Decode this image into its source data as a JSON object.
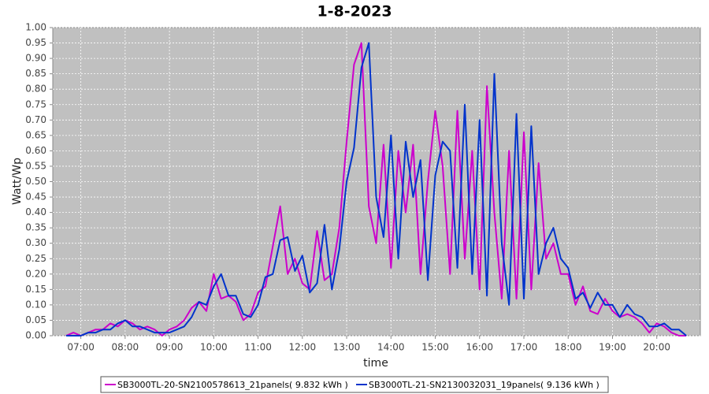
{
  "chart_data": {
    "type": "line",
    "title": "1-8-2023",
    "xlabel": "time",
    "ylabel": "Watt/Wp",
    "x": [
      "06:40",
      "06:50",
      "07:00",
      "07:10",
      "07:20",
      "07:30",
      "07:40",
      "07:50",
      "08:00",
      "08:10",
      "08:20",
      "08:30",
      "08:40",
      "08:50",
      "09:00",
      "09:10",
      "09:20",
      "09:30",
      "09:40",
      "09:50",
      "10:00",
      "10:10",
      "10:20",
      "10:30",
      "10:40",
      "10:50",
      "11:00",
      "11:10",
      "11:20",
      "11:30",
      "11:40",
      "11:50",
      "12:00",
      "12:10",
      "12:20",
      "12:30",
      "12:40",
      "12:50",
      "13:00",
      "13:10",
      "13:20",
      "13:30",
      "13:40",
      "13:50",
      "14:00",
      "14:10",
      "14:20",
      "14:30",
      "14:40",
      "14:50",
      "15:00",
      "15:10",
      "15:20",
      "15:30",
      "15:40",
      "15:50",
      "16:00",
      "16:10",
      "16:20",
      "16:30",
      "16:40",
      "16:50",
      "17:00",
      "17:10",
      "17:20",
      "17:30",
      "17:40",
      "17:50",
      "18:00",
      "18:10",
      "18:20",
      "18:30",
      "18:40",
      "18:50",
      "19:00",
      "19:10",
      "19:20",
      "19:30",
      "19:40",
      "19:50",
      "20:00",
      "20:10",
      "20:20",
      "20:30",
      "20:40"
    ],
    "series": [
      {
        "name": "SB3000TL-20-SN2100578613_21panels( 9.832 kWh )",
        "color": "#cc00cc",
        "values": [
          0,
          0.01,
          0,
          0.01,
          0.02,
          0.02,
          0.04,
          0.03,
          0.05,
          0.04,
          0.02,
          0.03,
          0.02,
          0,
          0.02,
          0.03,
          0.05,
          0.09,
          0.11,
          0.08,
          0.2,
          0.12,
          0.13,
          0.11,
          0.05,
          0.07,
          0.14,
          0.16,
          0.29,
          0.42,
          0.2,
          0.25,
          0.17,
          0.15,
          0.34,
          0.18,
          0.2,
          0.35,
          0.63,
          0.88,
          0.95,
          0.42,
          0.3,
          0.62,
          0.22,
          0.6,
          0.4,
          0.62,
          0.2,
          0.5,
          0.73,
          0.55,
          0.2,
          0.73,
          0.25,
          0.6,
          0.15,
          0.81,
          0.4,
          0.12,
          0.6,
          0.12,
          0.66,
          0.15,
          0.56,
          0.25,
          0.3,
          0.2,
          0.2,
          0.1,
          0.16,
          0.08,
          0.07,
          0.12,
          0.08,
          0.06,
          0.07,
          0.06,
          0.04,
          0.01,
          0.04,
          0.03,
          0.01,
          0,
          0
        ]
      },
      {
        "name": "SB3000TL-21-SN2130032031_19panels( 9.136 kWh )",
        "color": "#0033cc",
        "values": [
          0,
          0,
          0,
          0.01,
          0.01,
          0.02,
          0.02,
          0.04,
          0.05,
          0.03,
          0.03,
          0.02,
          0.01,
          0.01,
          0.01,
          0.02,
          0.03,
          0.06,
          0.11,
          0.1,
          0.16,
          0.2,
          0.13,
          0.13,
          0.07,
          0.06,
          0.1,
          0.19,
          0.2,
          0.31,
          0.32,
          0.21,
          0.26,
          0.14,
          0.17,
          0.36,
          0.15,
          0.28,
          0.5,
          0.61,
          0.87,
          0.95,
          0.45,
          0.32,
          0.65,
          0.25,
          0.63,
          0.45,
          0.57,
          0.18,
          0.52,
          0.63,
          0.6,
          0.22,
          0.75,
          0.2,
          0.7,
          0.13,
          0.85,
          0.3,
          0.1,
          0.72,
          0.12,
          0.68,
          0.2,
          0.3,
          0.35,
          0.25,
          0.22,
          0.12,
          0.14,
          0.09,
          0.14,
          0.1,
          0.1,
          0.06,
          0.1,
          0.07,
          0.06,
          0.03,
          0.03,
          0.04,
          0.02,
          0.02,
          0
        ]
      }
    ],
    "xlim": [
      "06:22",
      "20:59"
    ],
    "xticks": [
      "07:00",
      "08:00",
      "09:00",
      "10:00",
      "11:00",
      "12:00",
      "13:00",
      "14:00",
      "15:00",
      "16:00",
      "17:00",
      "18:00",
      "19:00",
      "20:00"
    ],
    "ylim": [
      0,
      1
    ],
    "yticks": [
      {
        "value": 0,
        "label": "0.00"
      },
      {
        "value": 0.05,
        "label": "0.05"
      },
      {
        "value": 0.1,
        "label": "0.10"
      },
      {
        "value": 0.15,
        "label": "0.15"
      },
      {
        "value": 0.2,
        "label": "0.20"
      },
      {
        "value": 0.25,
        "label": "0.25"
      },
      {
        "value": 0.3,
        "label": "0.30"
      },
      {
        "value": 0.35,
        "label": "0.35"
      },
      {
        "value": 0.4,
        "label": "0.40"
      },
      {
        "value": 0.45,
        "label": "0.45"
      },
      {
        "value": 0.5,
        "label": "0.50"
      },
      {
        "value": 0.55,
        "label": "0.55"
      },
      {
        "value": 0.6,
        "label": "0.60"
      },
      {
        "value": 0.65,
        "label": "0.65"
      },
      {
        "value": 0.7,
        "label": "0.70"
      },
      {
        "value": 0.75,
        "label": "0.75"
      },
      {
        "value": 0.8,
        "label": "0.80"
      },
      {
        "value": 0.85,
        "label": "0.85"
      },
      {
        "value": 0.9,
        "label": "0.90"
      },
      {
        "value": 0.95,
        "label": "0.95"
      },
      {
        "value": 1,
        "label": "1.00"
      }
    ],
    "grid": true,
    "legend": "bottom"
  }
}
